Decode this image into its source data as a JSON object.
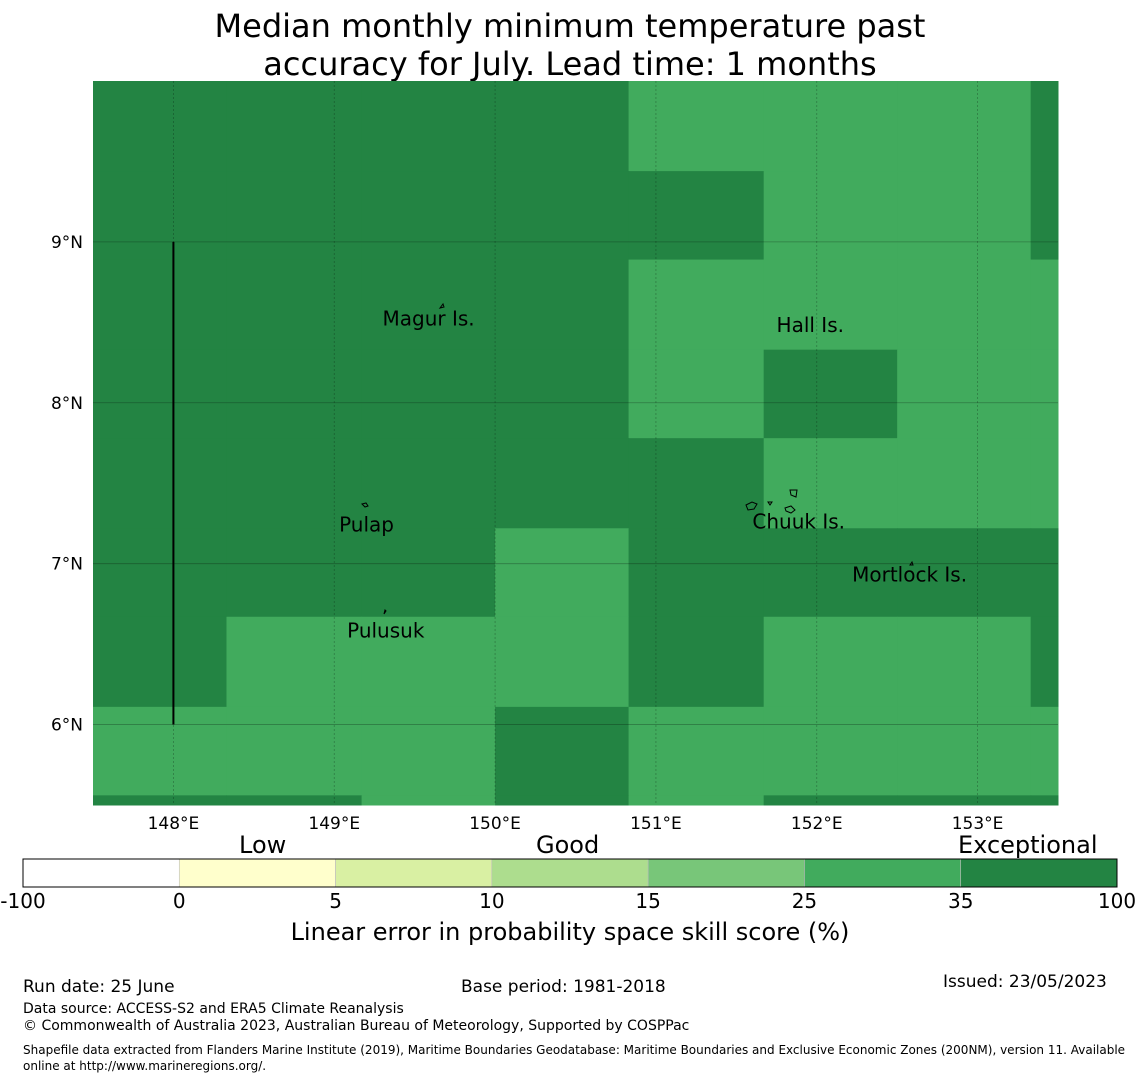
{
  "title_line1": "Median monthly minimum temperature past",
  "title_line2": "accuracy for July. Lead time: 1 months",
  "map": {
    "lon_range": [
      147.5,
      153.5
    ],
    "lat_range": [
      5.5,
      10.0
    ],
    "lon_ticks": [
      148,
      149,
      150,
      151,
      152,
      153
    ],
    "lon_tick_labels": [
      "148°E",
      "149°E",
      "150°E",
      "151°E",
      "152°E",
      "153°E"
    ],
    "lat_ticks": [
      6,
      7,
      8,
      9
    ],
    "lat_tick_labels": [
      "6°N",
      "7°N",
      "8°N",
      "9°N"
    ],
    "grid": true,
    "category_colors": {
      "good": "#41ab5d",
      "exceptional": "#238443"
    },
    "grid_cells": {
      "description": "Skill category per grid cell",
      "lon_edges": [
        147.5,
        148.33,
        149.17,
        150.0,
        150.83,
        151.67,
        152.5,
        153.33,
        153.5
      ],
      "lat_edges": [
        10.0,
        9.44,
        8.89,
        8.33,
        7.78,
        7.22,
        6.67,
        6.11,
        5.56,
        5.5
      ],
      "rows": [
        [
          "exceptional",
          "exceptional",
          "exceptional",
          "exceptional",
          "good",
          "good",
          "good",
          "exceptional"
        ],
        [
          "exceptional",
          "exceptional",
          "exceptional",
          "exceptional",
          "exceptional",
          "good",
          "good",
          "exceptional"
        ],
        [
          "exceptional",
          "exceptional",
          "exceptional",
          "exceptional",
          "good",
          "good",
          "good",
          "good"
        ],
        [
          "exceptional",
          "exceptional",
          "exceptional",
          "exceptional",
          "good",
          "exceptional",
          "good",
          "good"
        ],
        [
          "exceptional",
          "exceptional",
          "exceptional",
          "exceptional",
          "exceptional",
          "good",
          "good",
          "good"
        ],
        [
          "exceptional",
          "exceptional",
          "exceptional",
          "good",
          "exceptional",
          "exceptional",
          "exceptional",
          "exceptional"
        ],
        [
          "exceptional",
          "good",
          "good",
          "good",
          "exceptional",
          "good",
          "good",
          "exceptional"
        ],
        [
          "good",
          "good",
          "good",
          "exceptional",
          "good",
          "good",
          "good",
          "good"
        ],
        [
          "exceptional",
          "exceptional",
          "good",
          "exceptional",
          "good",
          "exceptional",
          "exceptional",
          "exceptional"
        ]
      ]
    },
    "boundary_line": {
      "lon": 148.0,
      "lat_from": 6.0,
      "lat_to": 9.0
    },
    "places": [
      {
        "name": "Magur Is.",
        "lon": 149.3,
        "lat": 8.48
      },
      {
        "name": "Hall Is.",
        "lon": 151.75,
        "lat": 8.44
      },
      {
        "name": "Pulap",
        "lon": 149.03,
        "lat": 7.2
      },
      {
        "name": "Chuuk Is.",
        "lon": 151.6,
        "lat": 7.22
      },
      {
        "name": "Mortlock Is.",
        "lon": 152.22,
        "lat": 6.89
      },
      {
        "name": "Pulusuk",
        "lon": 149.08,
        "lat": 6.54
      }
    ]
  },
  "colorbar": {
    "category_labels": [
      "Low",
      "Good",
      "Exceptional"
    ],
    "bin_colors": [
      "#ffffff",
      "#ffffcc",
      "#d9f0a3",
      "#addd8e",
      "#78c679",
      "#41ab5d",
      "#238443"
    ],
    "tick_labels": [
      "-100",
      "0",
      "5",
      "10",
      "15",
      "25",
      "35",
      "100"
    ],
    "axis_label": "Linear error in probability space skill score (%)"
  },
  "footer": {
    "run_date": "Run date: 25 June",
    "base_period": "Base period: 1981-2018",
    "issued": "Issued: 23/05/2023",
    "data_source": "Data source: ACCESS-S2 and ERA5 Climate Reanalysis",
    "copyright": "© Commonwealth of Australia 2023, Australian Bureau of Meteorology, Supported by COSPPac",
    "shapefile": "Shapefile data extracted from Flanders Marine Institute (2019), Maritime Boundaries Geodatabase: Maritime Boundaries and Exclusive Economic Zones (200NM), version 11. Available online at http://www.marineregions.org/."
  }
}
